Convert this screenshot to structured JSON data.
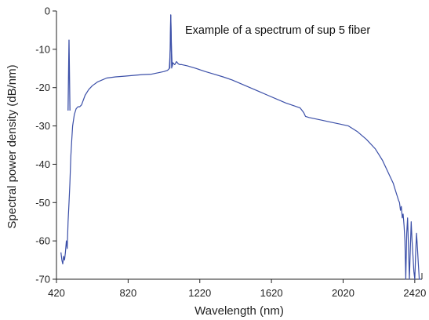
{
  "chart_data": {
    "type": "line",
    "title": "",
    "annotation": "Example of a spectrum of sup 5 fiber",
    "xlabel": "Wavelength (nm)",
    "ylabel": "Spectral power density (dB/nm)",
    "xlim": [
      420,
      2460
    ],
    "ylim": [
      -70,
      0
    ],
    "x_ticks": [
      420,
      820,
      1220,
      1620,
      2020,
      2420
    ],
    "y_ticks": [
      0,
      -10,
      -20,
      -30,
      -40,
      -50,
      -60,
      -70
    ],
    "grid": false,
    "legend": "none",
    "line_color": "#3b4fa8",
    "series": [
      {
        "x": [
          445,
          450,
          455,
          460,
          465,
          470,
          475,
          480,
          485,
          490,
          495,
          500,
          505,
          510,
          520,
          530,
          540,
          550,
          560,
          580,
          600,
          620,
          650,
          700,
          750,
          800,
          850,
          900,
          950,
          1000,
          1020,
          1040,
          1050,
          1055,
          1058,
          1062,
          1066,
          1070,
          1080,
          1090,
          1100,
          1110,
          1120,
          1150,
          1200,
          1250,
          1300,
          1350,
          1400,
          1450,
          1500,
          1550,
          1600,
          1650,
          1700,
          1750,
          1780,
          1800,
          1810,
          1830,
          1850,
          1900,
          1950,
          2000,
          2050,
          2100,
          2150,
          2200,
          2220,
          2240,
          2260,
          2280,
          2300,
          2310,
          2320,
          2330,
          2335,
          2340,
          2345,
          2350,
          2355,
          2360,
          2365,
          2370,
          2375,
          2380,
          2385,
          2390,
          2395,
          2400,
          2405,
          2410,
          2415,
          2420,
          2425,
          2430,
          2435,
          2440,
          2445,
          2450,
          2455
        ],
        "y": [
          -63,
          -65,
          -66,
          -64,
          -65,
          -63,
          -60,
          -62,
          -55,
          -50,
          -45,
          -38,
          -34,
          -30,
          -27,
          -25.5,
          -25,
          -25,
          -24.5,
          -22,
          -20.5,
          -19.5,
          -18.5,
          -17.5,
          -17.2,
          -17,
          -16.8,
          -16.6,
          -16.5,
          -16,
          -15.8,
          -15.5,
          -15,
          -10,
          -1,
          -10,
          -14.5,
          -13.5,
          -14,
          -13.2,
          -13.8,
          -14,
          -14,
          -14.3,
          -15,
          -15.8,
          -16.5,
          -17.2,
          -18,
          -19,
          -20,
          -21,
          -22,
          -23,
          -24,
          -24.8,
          -25.3,
          -26.5,
          -27.5,
          -27.8,
          -28,
          -28.5,
          -29,
          -29.5,
          -30,
          -31.5,
          -33.5,
          -36,
          -37.5,
          -39,
          -41,
          -43,
          -45,
          -46.5,
          -48,
          -49.5,
          -50,
          -52,
          -51,
          -54,
          -53,
          -56,
          -60,
          -70,
          -58,
          -54,
          -62,
          -70,
          -62,
          -55,
          -60,
          -64,
          -68,
          -70,
          -63,
          -58,
          -62,
          -66,
          -70,
          -70,
          -70
        ]
      }
    ],
    "spikes": [
      {
        "x": 490,
        "peak": -7.5,
        "base": -26
      },
      {
        "x": 1058,
        "peak": -1,
        "base": -15
      }
    ]
  }
}
